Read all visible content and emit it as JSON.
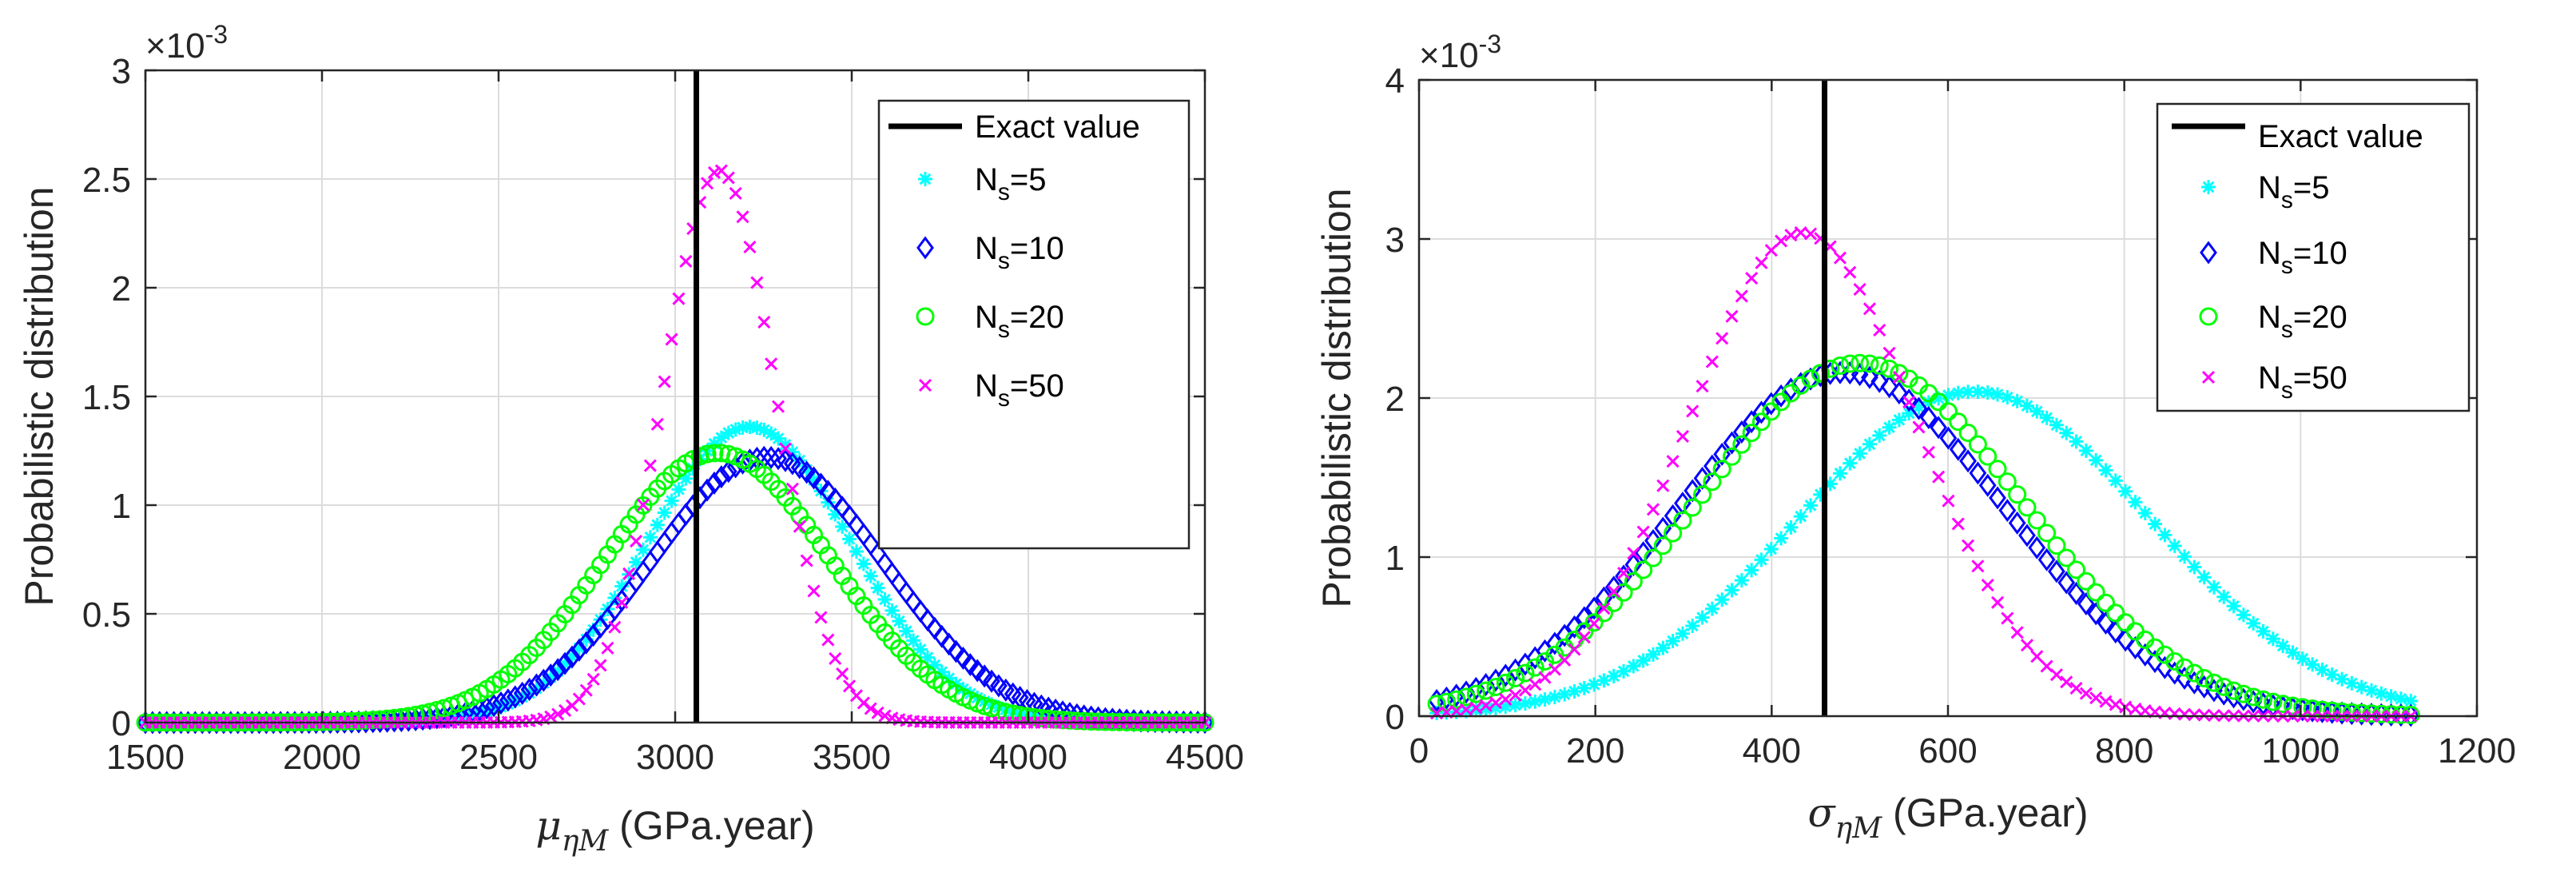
{
  "figure": {
    "colors": {
      "exact": "#000000",
      "ns5": "#00FFFF",
      "ns10": "#0000FF",
      "ns20": "#00FF00",
      "ns50": "#FF00FF",
      "grid": "#DCDCDC",
      "axis": "#262626"
    }
  },
  "chart_data": [
    {
      "type": "scatter",
      "title": "",
      "xlabel_symbol": "μ",
      "xlabel_sub": "ηM",
      "xlabel_rest": " (GPa.year)",
      "ylabel": "Probabilistic distribution",
      "exponent_prefix": "×10",
      "exponent_power": "-3",
      "xlim": [
        1500,
        4500
      ],
      "ylim": [
        0,
        3
      ],
      "xticks": [
        1500,
        2000,
        2500,
        3000,
        3500,
        4000,
        4500
      ],
      "yticks": [
        0,
        0.5,
        1,
        1.5,
        2,
        2.5,
        3
      ],
      "ytick_labels": [
        "0",
        "0.5",
        "1",
        "1.5",
        "2",
        "2.5",
        "3"
      ],
      "grid": true,
      "legend_position": "top-right",
      "exact_value": 3060,
      "legend": {
        "exact": "Exact value",
        "n5": "5",
        "n10": "10",
        "n20": "20",
        "n50": "50",
        "label_prefix": "N",
        "label_sub": "s",
        "label_eq": "="
      },
      "series": [
        {
          "name": "N_s=5",
          "marker": "asterisk",
          "mean": 3210,
          "sd": 290,
          "peak": 1.36,
          "xmin": 1500,
          "xmax": 4500,
          "n": 150
        },
        {
          "name": "N_s=10",
          "marker": "diamond",
          "mean": 3260,
          "sd": 330,
          "peak": 1.22,
          "xmin": 1500,
          "xmax": 4500,
          "n": 150
        },
        {
          "name": "N_s=20",
          "marker": "circle",
          "mean": 3120,
          "sd": 320,
          "peak": 1.24,
          "xmin": 1500,
          "xmax": 4500,
          "n": 150
        },
        {
          "name": "N_s=50",
          "marker": "cross",
          "mean": 3125,
          "sd": 158,
          "peak": 2.54,
          "xmin": 1500,
          "xmax": 4500,
          "n": 150
        }
      ]
    },
    {
      "type": "scatter",
      "title": "",
      "xlabel_symbol": "σ",
      "xlabel_sub": "ηM",
      "xlabel_rest": " (GPa.year)",
      "ylabel": "Probabilistic distribution",
      "exponent_prefix": "×10",
      "exponent_power": "-3",
      "xlim": [
        0,
        1200
      ],
      "ylim": [
        0,
        4
      ],
      "xticks": [
        0,
        200,
        400,
        600,
        800,
        1000,
        1200
      ],
      "yticks": [
        0,
        1,
        2,
        3,
        4
      ],
      "ytick_labels": [
        "0",
        "1",
        "2",
        "3",
        "4"
      ],
      "grid": true,
      "legend_position": "top-right",
      "exact_value": 460,
      "legend": {
        "exact": "Exact value",
        "n5": "5",
        "n10": "10",
        "n20": "20",
        "n50": "50",
        "label_prefix": "N",
        "label_sub": "s",
        "label_eq": "="
      },
      "series": [
        {
          "name": "N_s=5",
          "marker": "asterisk",
          "mean": 630,
          "sd": 200,
          "peak": 2.04,
          "xmin": 20,
          "xmax": 1125,
          "n": 100
        },
        {
          "name": "N_s=10",
          "marker": "diamond",
          "mean": 480,
          "sd": 185,
          "peak": 2.16,
          "xmin": 20,
          "xmax": 1125,
          "n": 100
        },
        {
          "name": "N_s=20",
          "marker": "circle",
          "mean": 500,
          "sd": 185,
          "peak": 2.22,
          "xmin": 20,
          "xmax": 1125,
          "n": 100
        },
        {
          "name": "N_s=50",
          "marker": "cross",
          "mean": 435,
          "sd": 130,
          "peak": 3.04,
          "xmin": 20,
          "xmax": 1125,
          "n": 100
        }
      ]
    }
  ]
}
